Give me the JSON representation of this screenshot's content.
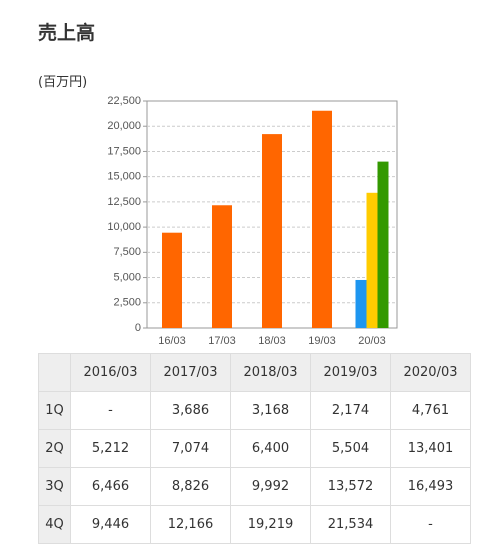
{
  "header": {
    "title": "売上高",
    "unit": "(百万円)"
  },
  "chart_data": {
    "type": "bar",
    "categories": [
      "16/03",
      "17/03",
      "18/03",
      "19/03",
      "20/03"
    ],
    "series": [
      {
        "color": "#1e96f0",
        "values": [
          null,
          null,
          null,
          null,
          4761
        ]
      },
      {
        "color": "#ffcc00",
        "values": [
          null,
          null,
          null,
          null,
          13401
        ]
      },
      {
        "color": "#339900",
        "values": [
          null,
          null,
          null,
          null,
          16493
        ]
      },
      {
        "color": "#ff6600",
        "values": [
          9446,
          12166,
          19219,
          21534,
          null
        ]
      }
    ],
    "ylim": [
      0,
      22500
    ],
    "yticks": [
      0,
      {
        "value": 2500,
        "label": "2,500"
      },
      {
        "value": 5000,
        "label": "5,000"
      },
      {
        "value": 7500,
        "label": "7,500"
      },
      {
        "value": 10000,
        "label": "10,000"
      },
      {
        "value": 12500,
        "label": "12,500"
      },
      {
        "value": 15000,
        "label": "15,000"
      },
      {
        "value": 17500,
        "label": "17,500"
      },
      {
        "value": 20000,
        "label": "20,000"
      },
      {
        "value": 22500,
        "label": "22,500"
      }
    ],
    "grid": true
  },
  "table": {
    "header": [
      "2016/03",
      "2017/03",
      "2018/03",
      "2019/03",
      "2020/03"
    ],
    "rows": [
      [
        "1Q",
        "-",
        "3,686",
        "3,168",
        "2,174",
        "4,761"
      ],
      [
        "2Q",
        "5,212",
        "7,074",
        "6,400",
        "5,504",
        "13,401"
      ],
      [
        "3Q",
        "6,466",
        "8,826",
        "9,992",
        "13,572",
        "16,493"
      ],
      [
        "4Q",
        "9,446",
        "12,166",
        "19,219",
        "21,534",
        "-"
      ]
    ]
  }
}
